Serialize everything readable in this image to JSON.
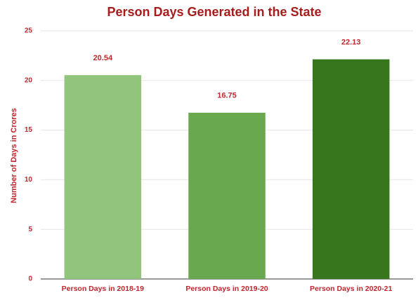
{
  "chart_data": {
    "type": "bar",
    "title": "Person Days Generated in the State",
    "y_label": "Number of Days in Crores",
    "categories": [
      "Person Days in 2018-19",
      "Person Days in 2019-20",
      "Person Days in 2020-21"
    ],
    "values": [
      20.54,
      16.75,
      22.13
    ],
    "colors": [
      "#93c47d",
      "#6aa84f",
      "#38761d"
    ],
    "ylim": [
      0,
      25
    ],
    "yticks": [
      0,
      5,
      10,
      15,
      20,
      25
    ],
    "grid": true
  }
}
